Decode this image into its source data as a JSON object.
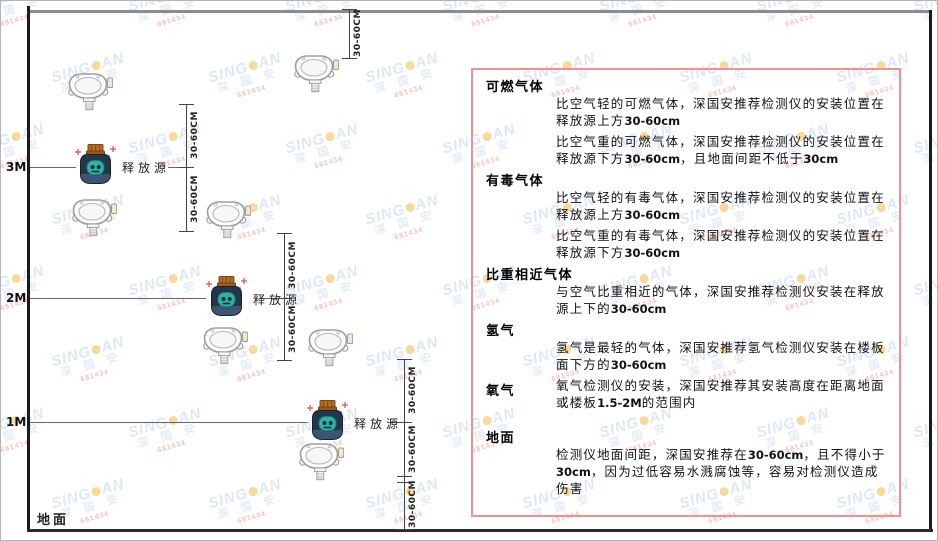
{
  "watermark": {
    "brand_left": "SING",
    "brand_right": "AN",
    "name": "深 国 安",
    "code": "681434"
  },
  "diagram": {
    "dim_label": "30-60CM",
    "release_source_label": "释放源",
    "ground_label": "地面",
    "height_markers": [
      {
        "label": "3M"
      },
      {
        "label": "2M"
      },
      {
        "label": "1M"
      }
    ],
    "icons": {
      "detector": "gas-detector-icon",
      "release_source": "hazard-bottle-icon",
      "watermark_dot": "orange-dot-icon"
    }
  },
  "panel": {
    "sections": [
      {
        "heading": "可燃气体",
        "paragraphs": [
          "比空气轻的可燃气体，深国安推荐检测仪的安装位置在释放源上方30-60cm",
          "比空气重的可燃气体，深国安推荐检测仪的安装位置在释放源下方30-60cm，且地面间距不低于30cm"
        ]
      },
      {
        "heading": "有毒气体",
        "paragraphs": [
          "比空气轻的有毒气体，深国安推荐检测仪的安装位置在释放源上方30-60cm",
          "比空气重的有毒气体，深国安推荐检测仪的安装位置在释放源下方30-60cm"
        ]
      },
      {
        "heading": "比重相近气体",
        "paragraphs": [
          "与空气比重相近的气体，深国安推荐检测仪安装在释放源上下的30-60cm"
        ]
      },
      {
        "heading": "氢气",
        "paragraphs": [
          "氢气是最轻的气体，深国安推荐氢气检测仪安装在楼板面下方的30-60cm"
        ]
      },
      {
        "heading": "氧气",
        "paragraphs": [
          "氧气检测仪的安装，深国安推荐其安装高度在距离地面或楼板1.5-2M的范围内"
        ]
      },
      {
        "heading": "地面",
        "paragraphs": [
          "检测仪地面间距，深国安推荐在30-60cm，且不得小于30cm，因为过低容易水溅腐蚀等，容易对检测仪造成伤害"
        ]
      }
    ]
  },
  "colors": {
    "panel_border": "#f09090",
    "watermark_blue": "#bed2ec",
    "watermark_orange": "#f2b43c",
    "sparkle_red": "#e0564b",
    "bottle_body": "#263649",
    "bottle_face": "#2fb3a9",
    "bottle_cap": "#b46a26"
  }
}
